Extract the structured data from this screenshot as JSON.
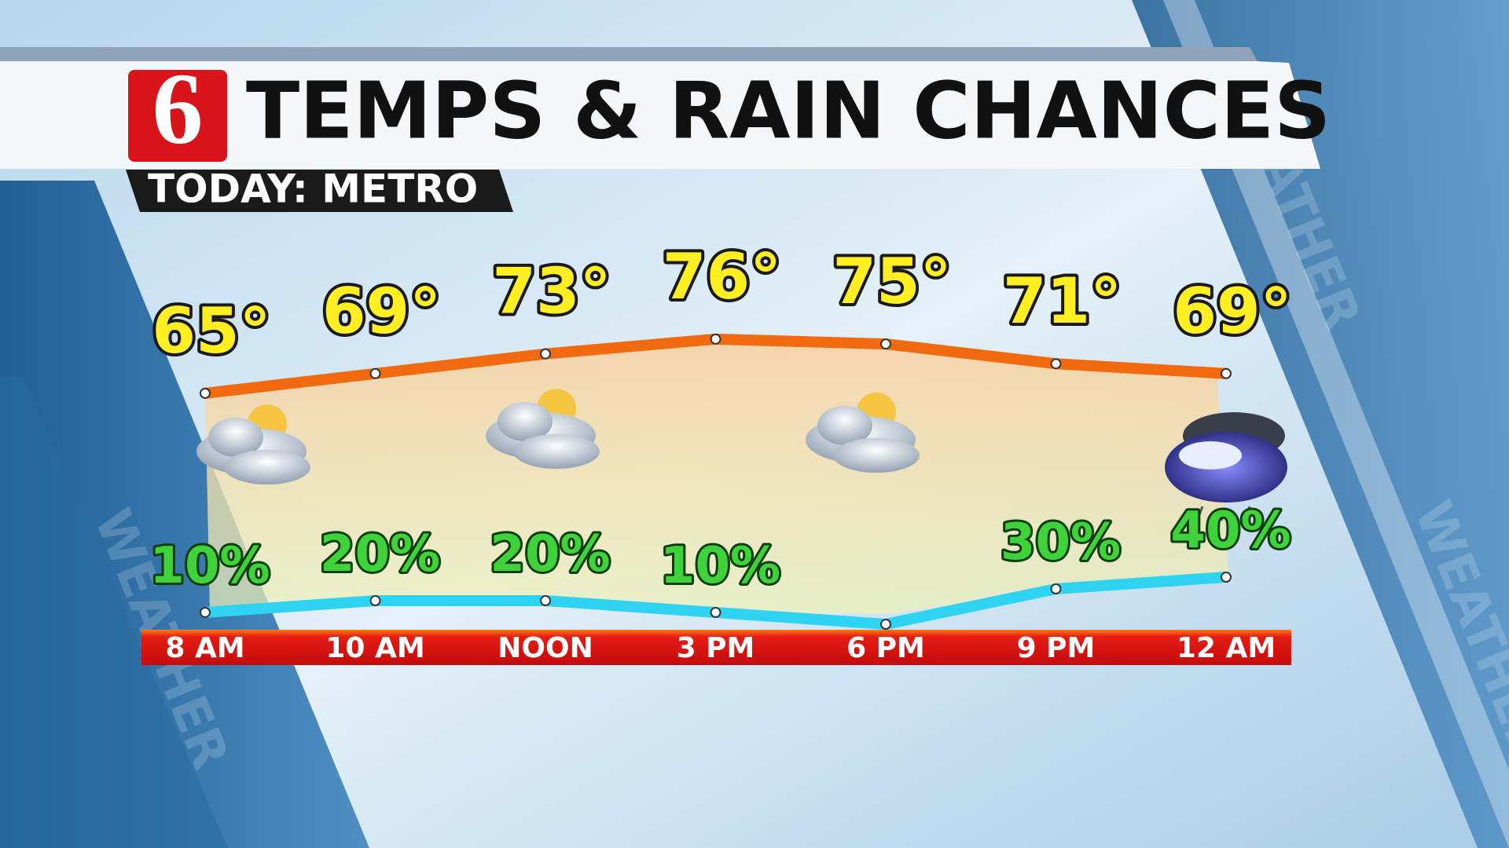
{
  "logo": "6",
  "watermark": "WEATHER",
  "chart_data": {
    "type": "line",
    "title": "TEMPS & RAIN CHANCES",
    "subtitle": "TODAY: METRO",
    "categories": [
      "8 AM",
      "10 AM",
      "NOON",
      "3 PM",
      "6 PM",
      "9 PM",
      "12 AM"
    ],
    "ylim": [
      50,
      90
    ],
    "y2lim": [
      0,
      100
    ],
    "series": [
      {
        "color": "#f26a0f",
        "values": [
          65,
          69,
          73,
          76,
          75,
          71,
          69
        ],
        "value_labels": [
          "65°",
          "69°",
          "73°",
          "76°",
          "75°",
          "71°",
          "69°"
        ]
      },
      {
        "color": "#2fd3f2",
        "axis": "y2",
        "values": [
          10,
          20,
          20,
          10,
          0,
          30,
          40
        ],
        "value_labels": [
          "10%",
          "20%",
          "20%",
          "10%",
          null,
          "30%",
          "40%"
        ]
      }
    ]
  }
}
